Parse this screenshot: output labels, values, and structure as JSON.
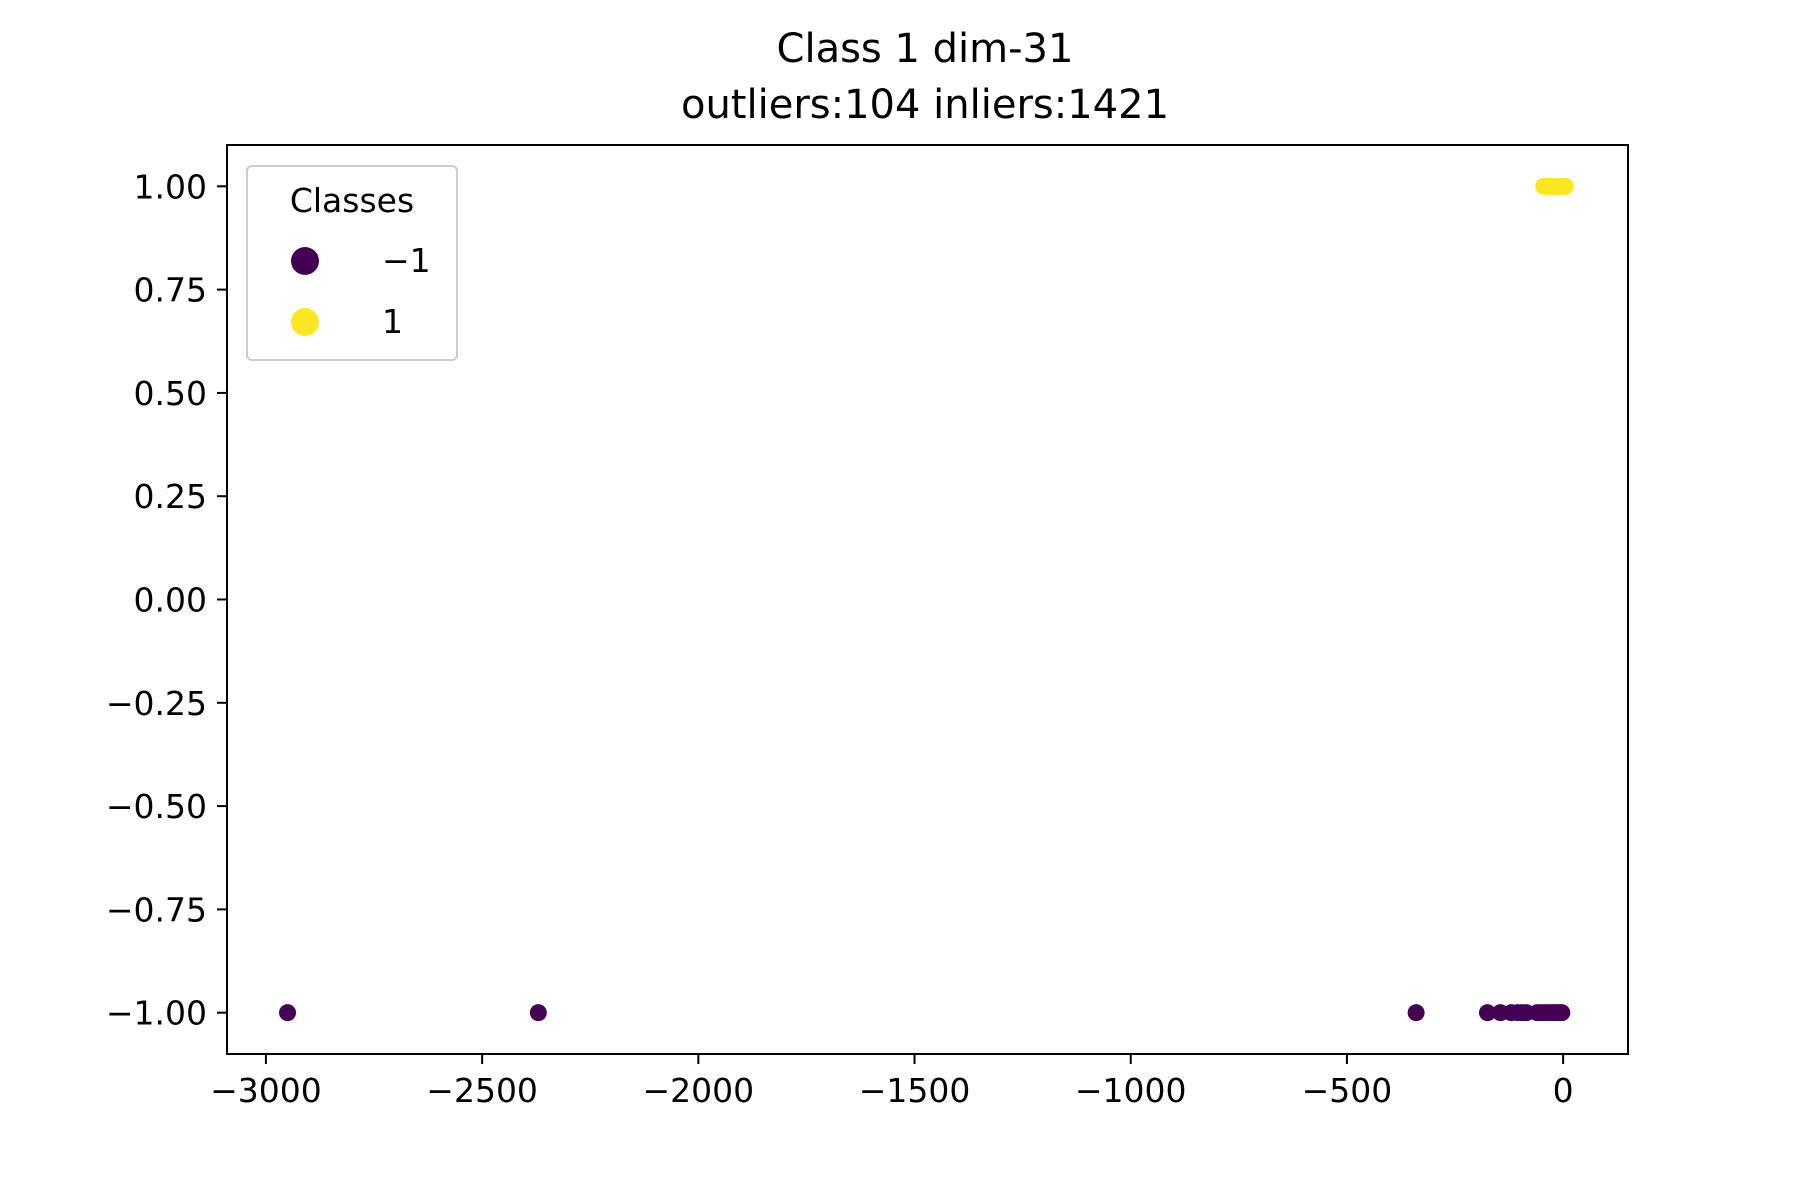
{
  "chart_data": {
    "type": "scatter",
    "title": "Class 1 dim-31",
    "subtitle": "outliers:104  inliers:1421",
    "xlim": [
      -3090,
      150
    ],
    "ylim": [
      -1.1,
      1.1
    ],
    "xticks": [
      -3000,
      -2500,
      -2000,
      -1500,
      -1000,
      -500,
      0
    ],
    "xtick_labels": [
      "−3000",
      "−2500",
      "−2000",
      "−1500",
      "−1000",
      "−500",
      "0"
    ],
    "yticks": [
      1.0,
      0.75,
      0.5,
      0.25,
      0.0,
      -0.25,
      -0.5,
      -0.75,
      -1.0
    ],
    "ytick_labels": [
      "1.00",
      "0.75",
      "0.50",
      "0.25",
      "0.00",
      "−0.25",
      "−0.50",
      "−0.75",
      "−1.00"
    ],
    "grid": false,
    "legend": {
      "title": "Classes",
      "placement": "top-left"
    },
    "series": [
      {
        "name": "−1",
        "color": "#440154",
        "points": [
          [
            -2950,
            -1
          ],
          [
            -2370,
            -1
          ],
          [
            -340,
            -1
          ],
          [
            -175,
            -1
          ],
          [
            -145,
            -1
          ],
          [
            -120,
            -1
          ],
          [
            -105,
            -1
          ],
          [
            -95,
            -1
          ],
          [
            -85,
            -1
          ],
          [
            -60,
            -1
          ],
          [
            -50,
            -1
          ],
          [
            -40,
            -1
          ],
          [
            -30,
            -1
          ],
          [
            -22,
            -1
          ],
          [
            -15,
            -1
          ],
          [
            -8,
            -1
          ],
          [
            -3,
            -1
          ]
        ]
      },
      {
        "name": "1",
        "color": "#fde725",
        "points": [
          [
            -45,
            1
          ],
          [
            -40,
            1
          ],
          [
            -35,
            1
          ],
          [
            -30,
            1
          ],
          [
            -25,
            1
          ],
          [
            -20,
            1
          ],
          [
            -15,
            1
          ],
          [
            -10,
            1
          ],
          [
            -5,
            1
          ],
          [
            -2,
            1
          ],
          [
            0,
            1
          ],
          [
            5,
            1
          ]
        ]
      }
    ]
  }
}
